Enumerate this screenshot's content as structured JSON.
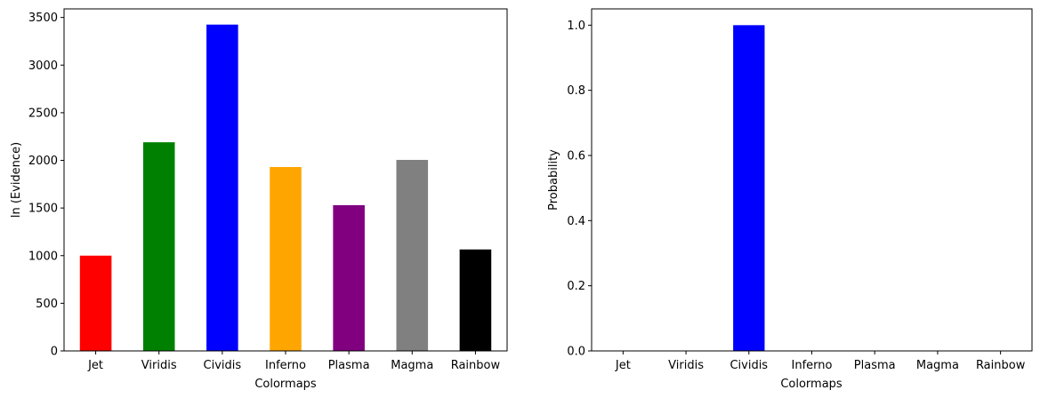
{
  "chart_data": [
    {
      "type": "bar",
      "categories": [
        "Jet",
        "Viridis",
        "Cividis",
        "Inferno",
        "Plasma",
        "Magma",
        "Rainbow"
      ],
      "values": [
        1000,
        2190,
        3425,
        1930,
        1530,
        2005,
        1065
      ],
      "colors": [
        "#ff0000",
        "#008000",
        "#0000ff",
        "#ffa500",
        "#800080",
        "#808080",
        "#000000"
      ],
      "xlabel": "Colormaps",
      "ylabel": "ln (Evidence)",
      "ylim": [
        0,
        3590
      ],
      "yticks": [
        0,
        500,
        1000,
        1500,
        2000,
        2500,
        3000,
        3500
      ],
      "ytick_labels": [
        "0",
        "500",
        "1000",
        "1500",
        "2000",
        "2500",
        "3000",
        "3500"
      ],
      "grid": false
    },
    {
      "type": "bar",
      "categories": [
        "Jet",
        "Viridis",
        "Cividis",
        "Inferno",
        "Plasma",
        "Magma",
        "Rainbow"
      ],
      "values": [
        0,
        0,
        1.0,
        0,
        0,
        0,
        0
      ],
      "colors": [
        "#0000ff",
        "#0000ff",
        "#0000ff",
        "#0000ff",
        "#0000ff",
        "#0000ff",
        "#0000ff"
      ],
      "xlabel": "Colormaps",
      "ylabel": "Probability",
      "ylim": [
        0,
        1.05
      ],
      "yticks": [
        0,
        0.2,
        0.4,
        0.6,
        0.8,
        1.0
      ],
      "ytick_labels": [
        "0.0",
        "0.2",
        "0.4",
        "0.6",
        "0.8",
        "1.0"
      ],
      "grid": false
    }
  ]
}
